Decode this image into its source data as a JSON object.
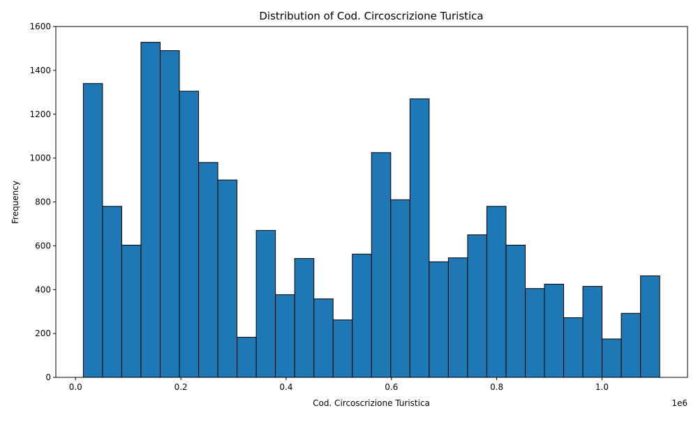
{
  "chart_data": {
    "type": "bar",
    "title": "Distribution of Cod. Circoscrizione Turistica",
    "xlabel": "Cod. Circoscrizione Turistica",
    "ylabel": "Frequency",
    "x_offset_label": "1e6",
    "xlim": [
      -0.0375,
      1.1625
    ],
    "ylim": [
      0,
      1600
    ],
    "xticks": [
      0.0,
      0.2,
      0.4,
      0.6,
      0.8,
      1.0
    ],
    "xtick_labels": [
      "0.0",
      "0.2",
      "0.4",
      "0.6",
      "0.8",
      "1.0"
    ],
    "yticks": [
      0,
      200,
      400,
      600,
      800,
      1000,
      1200,
      1400,
      1600
    ],
    "ytick_labels": [
      "0",
      "200",
      "400",
      "600",
      "800",
      "1000",
      "1200",
      "1400",
      "1600"
    ],
    "bin_start": 0.0147,
    "bin_width": 0.0365,
    "values": [
      1340,
      780,
      603,
      1528,
      1490,
      1305,
      980,
      900,
      183,
      670,
      377,
      542,
      358,
      262,
      562,
      1025,
      810,
      1270,
      527,
      545,
      650,
      780,
      603,
      405,
      425,
      272,
      415,
      175,
      292,
      463
    ],
    "grid": false,
    "legend": "none",
    "bar_color": "#1f77b4",
    "edge_color": "#000000"
  }
}
